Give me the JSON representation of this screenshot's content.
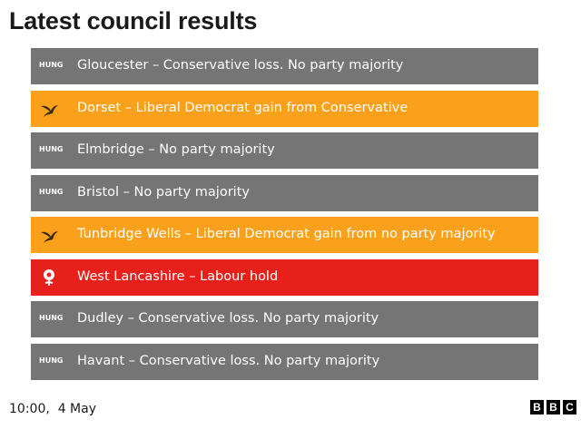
{
  "header": {
    "title": "Latest council results"
  },
  "rows": [
    {
      "badge": "HUNG",
      "text": "Gloucester – Conservative loss. No party majority",
      "color": "#757575"
    },
    {
      "text": "Dorset – Liberal Democrat gain from Conservative",
      "color": "#faa01b"
    },
    {
      "badge": "HUNG",
      "text": "Elmbridge – No party majority",
      "color": "#757575"
    },
    {
      "badge": "HUNG",
      "text": "Bristol – No party majority",
      "color": "#757575"
    },
    {
      "text": "Tunbridge Wells – Liberal Democrat gain from no party majority",
      "color": "#faa01b"
    },
    {
      "text": "West Lancashire – Labour hold",
      "color": "#e8201b"
    },
    {
      "badge": "HUNG",
      "text": "Dudley – Conservative loss. No party majority",
      "color": "#757575"
    },
    {
      "badge": "HUNG",
      "text": "Havant – Conservative loss. No party majority",
      "color": "#757575"
    }
  ],
  "footer": {
    "timestamp": "10:00,  4 May",
    "logo": [
      "B",
      "B",
      "C"
    ]
  }
}
